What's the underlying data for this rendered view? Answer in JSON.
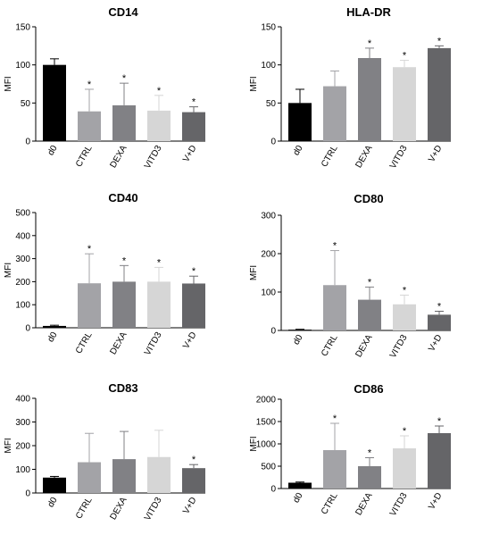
{
  "chart_data": [
    {
      "type": "bar",
      "title": "CD14",
      "ylabel": "MFI",
      "xlabel": "",
      "categories": [
        "d0",
        "CTRL",
        "DEXA",
        "VITD3",
        "V+D"
      ],
      "values": [
        100,
        39,
        47,
        40,
        38
      ],
      "errors": [
        8,
        29,
        29,
        20,
        7
      ],
      "significance": [
        "",
        "*",
        "*",
        "*",
        "*"
      ],
      "ylim": [
        0,
        150
      ],
      "yticks": [
        "0",
        "50",
        "100",
        "150"
      ]
    },
    {
      "type": "bar",
      "title": "HLA-DR",
      "ylabel": "MFI",
      "xlabel": "",
      "categories": [
        "d0",
        "CTRL",
        "DEXA",
        "VITD3",
        "V+D"
      ],
      "values": [
        50,
        72,
        109,
        97,
        122
      ],
      "errors": [
        18,
        20,
        13,
        9,
        3
      ],
      "significance": [
        "",
        "",
        "*",
        "*",
        "*"
      ],
      "ylim": [
        0,
        150
      ],
      "yticks": [
        "0",
        "50",
        "100",
        "150"
      ]
    },
    {
      "type": "bar",
      "title": "CD40",
      "ylabel": "MFI",
      "xlabel": "",
      "categories": [
        "d0",
        "CTRL",
        "DEXA",
        "VITD3",
        "V+D"
      ],
      "values": [
        8,
        193,
        200,
        200,
        192
      ],
      "errors": [
        3,
        128,
        70,
        62,
        32
      ],
      "significance": [
        "",
        "*",
        "*",
        "*",
        "*"
      ],
      "ylim": [
        0,
        500
      ],
      "yticks": [
        "0",
        "100",
        "200",
        "300",
        "400",
        "500"
      ]
    },
    {
      "type": "bar",
      "title": "CD80",
      "ylabel": "MFI",
      "xlabel": "",
      "categories": [
        "d0",
        "CTRL",
        "DEXA",
        "VITD3",
        "V+D"
      ],
      "values": [
        2,
        118,
        80,
        68,
        41
      ],
      "errors": [
        1,
        90,
        33,
        24,
        9
      ],
      "significance": [
        "",
        "*",
        "*",
        "*",
        "*"
      ],
      "ylim": [
        0,
        300
      ],
      "yticks": [
        "0",
        "100",
        "200",
        "300"
      ]
    },
    {
      "type": "bar",
      "title": "CD83",
      "ylabel": "MFI",
      "xlabel": "",
      "categories": [
        "d0",
        "CTRL",
        "DEXA",
        "VITD3",
        "V+D"
      ],
      "values": [
        65,
        130,
        143,
        152,
        105
      ],
      "errors": [
        5,
        122,
        117,
        113,
        15
      ],
      "significance": [
        "",
        "",
        "",
        "",
        "*"
      ],
      "ylim": [
        0,
        400
      ],
      "yticks": [
        "0",
        "100",
        "200",
        "300",
        "400"
      ]
    },
    {
      "type": "bar",
      "title": "CD86",
      "ylabel": "MFI",
      "xlabel": "",
      "categories": [
        "d0",
        "CTRL",
        "DEXA",
        "VITD3",
        "V+D"
      ],
      "values": [
        130,
        860,
        500,
        900,
        1240
      ],
      "errors": [
        15,
        600,
        190,
        280,
        160
      ],
      "significance": [
        "",
        "*",
        "*",
        "*",
        "*"
      ],
      "ylim": [
        0,
        2000
      ],
      "yticks": [
        "0",
        "500",
        "1000",
        "1500",
        "2000"
      ]
    }
  ],
  "bar_colors": [
    "#000000",
    "#a3a3a7",
    "#818185",
    "#d6d6d6",
    "#656568"
  ]
}
